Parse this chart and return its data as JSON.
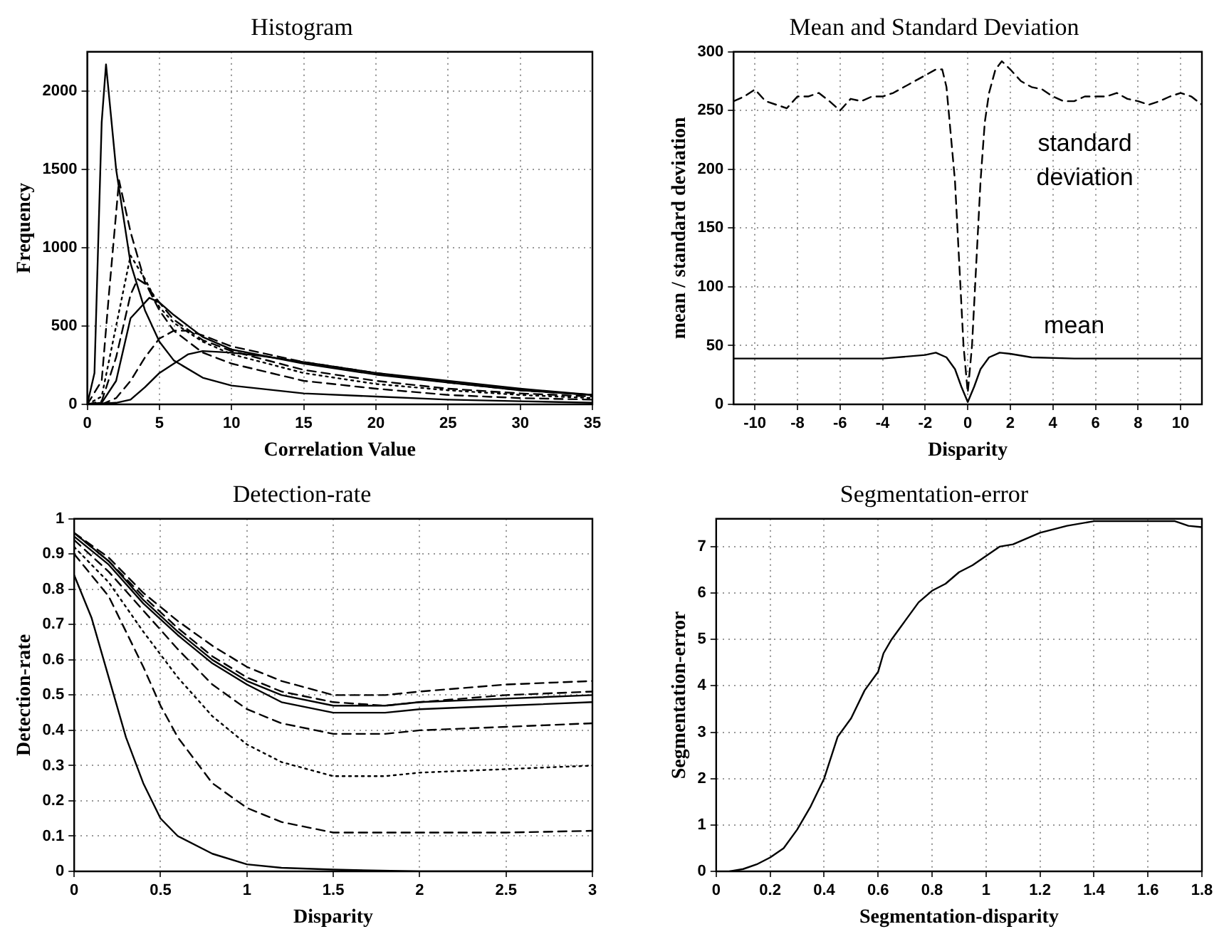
{
  "chart_data": [
    {
      "type": "line",
      "title": "Histogram",
      "xlabel": "Correlation Value",
      "ylabel": "Frequency",
      "xlim": [
        0,
        35
      ],
      "xticks": [
        0,
        5,
        10,
        15,
        20,
        25,
        30,
        35
      ],
      "ylim": [
        0,
        2250
      ],
      "yticks": [
        0,
        500,
        1000,
        1500,
        2000
      ],
      "grid": true,
      "legend": false,
      "marker": "none",
      "series": [
        {
          "color": "#000000",
          "line_style": "solid",
          "x": [
            0,
            0.5,
            1,
            1.3,
            2,
            3,
            4,
            5,
            6,
            8,
            10,
            15,
            20,
            25,
            30,
            35
          ],
          "values": [
            0,
            200,
            1800,
            2170,
            1500,
            900,
            600,
            400,
            280,
            170,
            120,
            70,
            50,
            30,
            20,
            10
          ]
        },
        {
          "color": "#000000",
          "line_style": "dashed",
          "x": [
            0,
            1,
            1.5,
            2.2,
            3,
            4,
            5,
            6,
            8,
            10,
            15,
            20,
            25,
            30,
            35
          ],
          "values": [
            0,
            150,
            700,
            1430,
            1100,
            780,
            600,
            470,
            330,
            260,
            150,
            100,
            60,
            40,
            30
          ]
        },
        {
          "color": "#000000",
          "line_style": "dotted",
          "x": [
            0,
            1,
            2,
            3,
            4,
            5,
            6,
            8,
            10,
            15,
            20,
            25,
            30,
            35
          ],
          "values": [
            0,
            50,
            500,
            950,
            800,
            620,
            520,
            400,
            320,
            200,
            130,
            90,
            60,
            40
          ]
        },
        {
          "color": "#000000",
          "line_style": "dashed",
          "x": [
            0,
            1,
            2,
            3,
            3.5,
            4,
            5,
            6,
            8,
            10,
            15,
            20,
            25,
            30,
            35
          ],
          "values": [
            0,
            20,
            300,
            700,
            800,
            770,
            650,
            540,
            410,
            340,
            220,
            150,
            100,
            70,
            50
          ]
        },
        {
          "color": "#000000",
          "line_style": "solid",
          "x": [
            0,
            1,
            2,
            3,
            4.3,
            5,
            6,
            8,
            10,
            15,
            20,
            25,
            30,
            35
          ],
          "values": [
            0,
            10,
            150,
            550,
            680,
            650,
            570,
            430,
            350,
            260,
            190,
            140,
            90,
            60
          ]
        },
        {
          "color": "#000000",
          "line_style": "dashed",
          "x": [
            0,
            1,
            2,
            3,
            4,
            5,
            6,
            7,
            8,
            10,
            15,
            20,
            25,
            30,
            35
          ],
          "values": [
            0,
            0,
            40,
            150,
            300,
            420,
            470,
            470,
            440,
            370,
            270,
            200,
            140,
            90,
            60
          ]
        },
        {
          "color": "#000000",
          "line_style": "solid",
          "x": [
            0,
            2,
            3,
            4,
            5,
            6,
            7,
            8,
            10,
            12,
            15,
            20,
            25,
            30,
            35
          ],
          "values": [
            0,
            10,
            30,
            110,
            200,
            260,
            320,
            340,
            330,
            310,
            270,
            200,
            150,
            100,
            60
          ]
        }
      ]
    },
    {
      "type": "line",
      "title": "Mean and Standard Deviation",
      "xlabel": "Disparity",
      "ylabel": "mean / standard deviation",
      "xlim": [
        -11,
        11
      ],
      "xticks": [
        -10,
        -8,
        -6,
        -4,
        -2,
        0,
        2,
        4,
        6,
        8,
        10
      ],
      "ylim": [
        0,
        300
      ],
      "yticks": [
        0,
        50,
        100,
        150,
        200,
        250,
        300
      ],
      "grid": true,
      "legend": false,
      "marker": "none",
      "series": [
        {
          "name": "standard deviation",
          "color": "#000000",
          "line_style": "dashed",
          "x": [
            -11,
            -10.5,
            -10,
            -9.5,
            -9,
            -8.5,
            -8,
            -7.5,
            -7,
            -6.5,
            -6,
            -5.5,
            -5,
            -4.5,
            -4,
            -3.5,
            -3,
            -2.5,
            -2,
            -1.5,
            -1.2,
            -1,
            -0.8,
            -0.6,
            -0.4,
            -0.2,
            0,
            0.2,
            0.4,
            0.6,
            0.8,
            1,
            1.3,
            1.6,
            2,
            2.5,
            3,
            3.5,
            4,
            4.5,
            5,
            5.5,
            6,
            6.5,
            7,
            7.5,
            8,
            8.5,
            9,
            9.5,
            10,
            10.5,
            11
          ],
          "values": [
            258,
            262,
            268,
            258,
            255,
            252,
            262,
            262,
            265,
            258,
            250,
            260,
            258,
            262,
            262,
            265,
            270,
            275,
            280,
            285,
            285,
            270,
            230,
            190,
            120,
            50,
            10,
            50,
            120,
            190,
            240,
            265,
            285,
            292,
            285,
            275,
            270,
            268,
            262,
            258,
            258,
            262,
            262,
            262,
            265,
            260,
            258,
            255,
            258,
            262,
            265,
            262,
            255
          ]
        },
        {
          "name": "mean",
          "color": "#000000",
          "line_style": "solid",
          "x": [
            -11,
            -4,
            -2,
            -1.5,
            -1,
            -0.6,
            -0.3,
            0,
            0.3,
            0.6,
            1,
            1.5,
            2,
            3,
            5,
            11
          ],
          "values": [
            39,
            39,
            42,
            44,
            40,
            30,
            15,
            2,
            15,
            30,
            40,
            44,
            43,
            40,
            39,
            39
          ]
        }
      ]
    },
    {
      "type": "line",
      "title": "Detection-rate",
      "xlabel": "Disparity",
      "ylabel": "Detection-rate",
      "xlim": [
        0,
        3
      ],
      "xticks": [
        0,
        0.5,
        1,
        1.5,
        2,
        2.5,
        3
      ],
      "ylim": [
        0,
        1
      ],
      "yticks": [
        0,
        0.1,
        0.2,
        0.3,
        0.4,
        0.5,
        0.6,
        0.7,
        0.8,
        0.9,
        1
      ],
      "grid": true,
      "legend": false,
      "marker": "none",
      "x": [
        0,
        0.2,
        0.4,
        0.6,
        0.8,
        1,
        1.2,
        1.5,
        1.8,
        2,
        2.5,
        3
      ],
      "series": [
        {
          "color": "#000000",
          "line_style": "solid",
          "x": [
            0,
            0.1,
            0.2,
            0.3,
            0.4,
            0.5,
            0.6,
            0.8,
            1,
            1.2,
            1.5,
            2,
            3
          ],
          "values": [
            0.84,
            0.72,
            0.55,
            0.38,
            0.25,
            0.15,
            0.1,
            0.05,
            0.02,
            0.01,
            0.005,
            0,
            0
          ]
        },
        {
          "color": "#000000",
          "line_style": "dashed",
          "x": [
            0,
            0.2,
            0.4,
            0.5,
            0.6,
            0.8,
            1,
            1.2,
            1.5,
            2,
            2.5,
            3
          ],
          "values": [
            0.9,
            0.78,
            0.58,
            0.47,
            0.38,
            0.25,
            0.18,
            0.14,
            0.11,
            0.11,
            0.11,
            0.115
          ]
        },
        {
          "color": "#000000",
          "line_style": "dotted",
          "values": [
            0.92,
            0.82,
            0.68,
            0.55,
            0.44,
            0.36,
            0.31,
            0.27,
            0.27,
            0.28,
            0.29,
            0.3
          ]
        },
        {
          "color": "#000000",
          "line_style": "dashed",
          "values": [
            0.94,
            0.85,
            0.74,
            0.63,
            0.53,
            0.46,
            0.42,
            0.39,
            0.39,
            0.4,
            0.41,
            0.42
          ]
        },
        {
          "color": "#000000",
          "line_style": "solid",
          "values": [
            0.95,
            0.87,
            0.76,
            0.67,
            0.59,
            0.53,
            0.48,
            0.45,
            0.45,
            0.46,
            0.47,
            0.48
          ]
        },
        {
          "color": "#000000",
          "line_style": "solid",
          "values": [
            0.96,
            0.88,
            0.77,
            0.68,
            0.6,
            0.54,
            0.5,
            0.47,
            0.47,
            0.48,
            0.49,
            0.5
          ]
        },
        {
          "color": "#000000",
          "line_style": "dashed",
          "values": [
            0.96,
            0.88,
            0.78,
            0.69,
            0.61,
            0.55,
            0.51,
            0.48,
            0.47,
            0.48,
            0.5,
            0.51
          ]
        },
        {
          "color": "#000000",
          "line_style": "dashed",
          "values": [
            0.96,
            0.89,
            0.79,
            0.71,
            0.64,
            0.58,
            0.54,
            0.5,
            0.5,
            0.51,
            0.53,
            0.54
          ]
        }
      ]
    },
    {
      "type": "line",
      "title": "Segmentation-error",
      "xlabel": "Segmentation-disparity",
      "ylabel": "Segmentation-error",
      "xlim": [
        0,
        1.8
      ],
      "xticks": [
        0,
        0.2,
        0.4,
        0.6,
        0.8,
        1,
        1.2,
        1.4,
        1.6,
        1.8
      ],
      "ylim": [
        0,
        7.6
      ],
      "yticks": [
        0,
        1,
        2,
        3,
        4,
        5,
        6,
        7
      ],
      "grid": true,
      "legend": false,
      "marker": "none",
      "series": [
        {
          "color": "#000000",
          "line_style": "solid",
          "x": [
            0.05,
            0.1,
            0.15,
            0.2,
            0.25,
            0.3,
            0.35,
            0.4,
            0.45,
            0.5,
            0.55,
            0.6,
            0.62,
            0.65,
            0.7,
            0.75,
            0.8,
            0.85,
            0.9,
            0.95,
            1,
            1.05,
            1.1,
            1.2,
            1.3,
            1.4,
            1.5,
            1.6,
            1.7,
            1.75,
            1.8
          ],
          "values": [
            0,
            0.05,
            0.15,
            0.3,
            0.5,
            0.9,
            1.4,
            2,
            2.9,
            3.3,
            3.9,
            4.3,
            4.7,
            5,
            5.4,
            5.8,
            6.05,
            6.2,
            6.45,
            6.6,
            6.8,
            7,
            7.05,
            7.3,
            7.45,
            7.55,
            7.55,
            7.55,
            7.55,
            7.45,
            7.42
          ]
        }
      ]
    }
  ]
}
